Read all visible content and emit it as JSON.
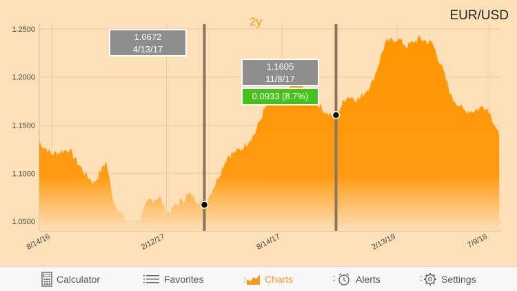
{
  "header": {
    "pair": "EUR/USD",
    "range": "2y"
  },
  "chart_data": {
    "type": "area",
    "y_ticks": [
      "1.2500",
      "1.2000",
      "1.1500",
      "1.1000",
      "1.0500"
    ],
    "x_ticks": [
      "8/14/16",
      "2/12/17",
      "8/14/17",
      "2/13/18",
      "7/9/18"
    ],
    "ylim": [
      1.04,
      1.255
    ],
    "color": "#ff9500",
    "series": {
      "x": [
        "2016-07-25",
        "2016-08-14",
        "2016-09-10",
        "2016-10-05",
        "2016-10-20",
        "2016-11-08",
        "2016-11-20",
        "2016-12-15",
        "2016-12-30",
        "2017-01-15",
        "2017-02-01",
        "2017-02-12",
        "2017-03-01",
        "2017-03-20",
        "2017-04-13",
        "2017-05-01",
        "2017-05-20",
        "2017-06-10",
        "2017-07-01",
        "2017-07-20",
        "2017-08-14",
        "2017-09-08",
        "2017-10-01",
        "2017-10-25",
        "2017-11-08",
        "2017-11-25",
        "2017-12-15",
        "2018-01-05",
        "2018-01-25",
        "2018-02-13",
        "2018-03-01",
        "2018-03-20",
        "2018-04-10",
        "2018-04-25",
        "2018-05-10",
        "2018-05-30",
        "2018-06-15",
        "2018-07-01",
        "2018-07-09",
        "2018-07-25"
      ],
      "values": [
        1.132,
        1.12,
        1.125,
        1.1,
        1.09,
        1.112,
        1.07,
        1.045,
        1.05,
        1.072,
        1.075,
        1.058,
        1.068,
        1.078,
        1.067,
        1.09,
        1.118,
        1.125,
        1.14,
        1.17,
        1.182,
        1.195,
        1.178,
        1.162,
        1.16,
        1.18,
        1.177,
        1.195,
        1.235,
        1.24,
        1.232,
        1.24,
        1.235,
        1.21,
        1.18,
        1.165,
        1.165,
        1.17,
        1.165,
        1.14
      ]
    }
  },
  "markers": [
    {
      "value": "1.0672",
      "date": "4/13/17"
    },
    {
      "value": "1.1605",
      "date": "11/8/17"
    }
  ],
  "change": {
    "text": "0.0933 (8.7%)"
  },
  "tabs": [
    {
      "label": "Calculator",
      "icon": "calculator-icon"
    },
    {
      "label": "Favorites",
      "icon": "list-icon"
    },
    {
      "label": "Charts",
      "icon": "chart-icon"
    },
    {
      "label": "Alerts",
      "icon": "alarm-clock-icon"
    },
    {
      "label": "Settings",
      "icon": "gear-icon"
    }
  ]
}
